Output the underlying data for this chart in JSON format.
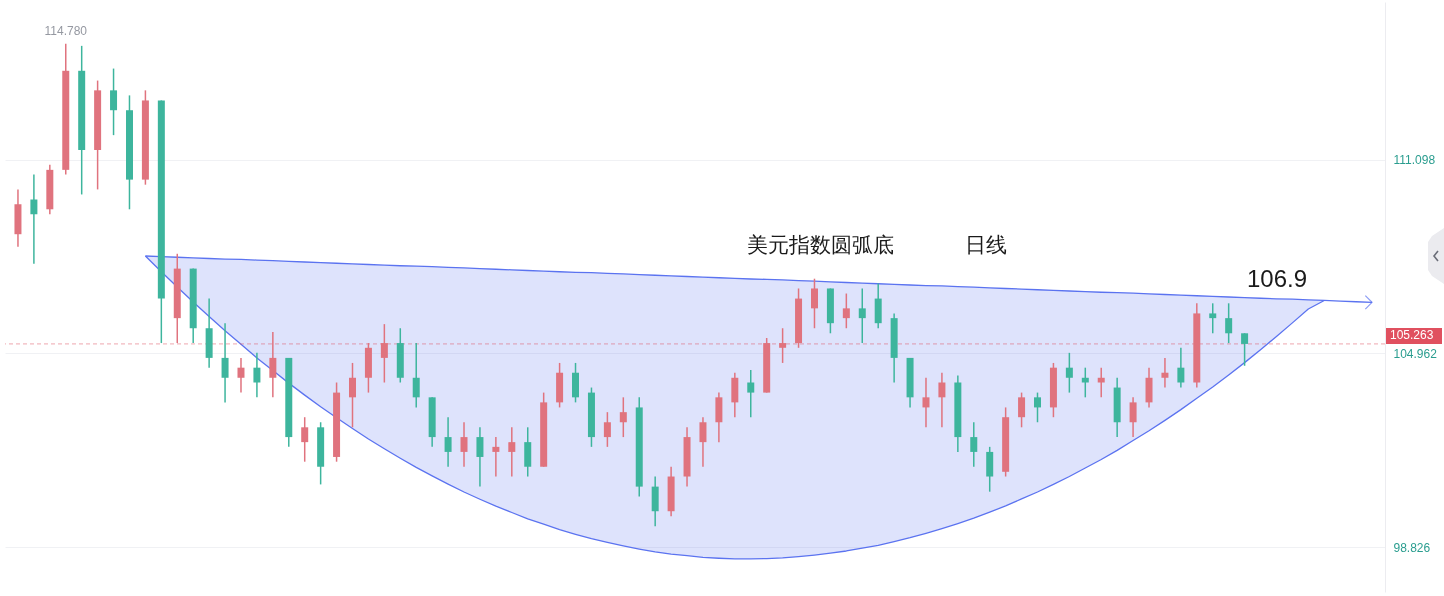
{
  "chart_data": {
    "type": "candlestick",
    "categories": [
      null,
      null,
      null,
      null,
      null,
      null,
      null,
      null,
      null,
      null,
      null,
      null,
      null,
      null,
      null,
      null,
      null,
      null,
      null,
      null,
      null,
      null,
      null,
      null,
      null,
      null,
      null,
      null,
      null,
      null,
      null,
      null,
      null,
      null,
      null,
      null,
      null,
      null,
      null,
      null,
      null,
      null,
      null,
      null,
      null,
      null,
      null,
      null,
      null,
      null,
      null,
      null,
      null,
      null,
      null,
      null,
      null,
      null,
      null,
      null,
      null,
      null,
      null,
      null,
      null,
      null,
      null,
      null,
      null,
      null,
      null,
      null,
      null,
      null,
      null,
      null,
      null,
      null,
      null,
      null,
      null,
      null,
      null,
      null,
      null,
      null
    ],
    "ohlc": [
      [
        108.74,
        110.16,
        108.34,
        109.69
      ],
      [
        109.84,
        110.63,
        107.8,
        109.37
      ],
      [
        109.53,
        110.94,
        109.37,
        110.78
      ],
      [
        110.78,
        114.78,
        110.63,
        113.92
      ],
      [
        113.92,
        114.71,
        110.0,
        111.41
      ],
      [
        111.41,
        113.61,
        110.16,
        113.3
      ],
      [
        113.3,
        113.99,
        111.88,
        112.67
      ],
      [
        112.67,
        113.14,
        109.53,
        110.47
      ],
      [
        110.47,
        113.3,
        110.31,
        112.98
      ],
      [
        112.98,
        112.98,
        105.29,
        106.7
      ],
      [
        106.08,
        108.12,
        105.29,
        107.65
      ],
      [
        107.65,
        107.65,
        105.29,
        105.76
      ],
      [
        105.76,
        106.7,
        104.51,
        104.82
      ],
      [
        104.82,
        105.92,
        103.41,
        104.19
      ],
      [
        104.19,
        104.82,
        103.72,
        104.51
      ],
      [
        104.51,
        104.98,
        103.57,
        104.04
      ],
      [
        104.19,
        105.64,
        103.57,
        104.82
      ],
      [
        104.82,
        104.82,
        102.0,
        102.31
      ],
      [
        102.15,
        102.94,
        101.53,
        102.62
      ],
      [
        102.62,
        102.78,
        100.81,
        101.37
      ],
      [
        101.68,
        104.04,
        101.53,
        103.72
      ],
      [
        103.57,
        104.66,
        102.62,
        104.19
      ],
      [
        104.19,
        105.29,
        103.72,
        105.14
      ],
      [
        104.82,
        105.89,
        104.04,
        105.29
      ],
      [
        105.29,
        105.76,
        104.04,
        104.19
      ],
      [
        104.19,
        105.29,
        103.25,
        103.57
      ],
      [
        103.57,
        103.57,
        102.0,
        102.31
      ],
      [
        102.31,
        102.94,
        101.37,
        101.84
      ],
      [
        101.84,
        102.78,
        101.37,
        102.31
      ],
      [
        102.31,
        102.62,
        100.74,
        101.68
      ],
      [
        101.84,
        102.31,
        101.06,
        102.0
      ],
      [
        101.84,
        102.62,
        101.06,
        102.15
      ],
      [
        102.15,
        102.62,
        101.06,
        101.37
      ],
      [
        101.37,
        103.72,
        101.37,
        103.41
      ],
      [
        103.41,
        104.66,
        103.25,
        104.35
      ],
      [
        104.35,
        104.66,
        103.41,
        103.57
      ],
      [
        103.72,
        103.88,
        102.0,
        102.31
      ],
      [
        102.31,
        103.1,
        102.0,
        102.78
      ],
      [
        102.78,
        103.57,
        102.31,
        103.1
      ],
      [
        103.25,
        103.57,
        100.43,
        100.74
      ],
      [
        100.74,
        101.06,
        99.48,
        99.96
      ],
      [
        99.96,
        101.37,
        99.8,
        101.06
      ],
      [
        101.06,
        102.62,
        100.74,
        102.31
      ],
      [
        102.15,
        102.94,
        101.37,
        102.78
      ],
      [
        102.78,
        103.72,
        102.15,
        103.57
      ],
      [
        103.41,
        104.35,
        102.94,
        104.19
      ],
      [
        104.04,
        104.44,
        102.94,
        103.72
      ],
      [
        103.72,
        105.45,
        103.72,
        105.29
      ],
      [
        105.14,
        105.76,
        104.66,
        105.29
      ],
      [
        105.29,
        107.02,
        105.14,
        106.7
      ],
      [
        106.39,
        107.33,
        105.76,
        107.02
      ],
      [
        107.02,
        107.02,
        105.6,
        105.92
      ],
      [
        106.08,
        106.86,
        105.76,
        106.39
      ],
      [
        106.39,
        107.02,
        105.29,
        106.08
      ],
      [
        106.7,
        107.18,
        105.76,
        105.92
      ],
      [
        106.08,
        106.23,
        104.04,
        104.82
      ],
      [
        104.82,
        104.82,
        103.25,
        103.57
      ],
      [
        103.25,
        104.19,
        102.62,
        103.57
      ],
      [
        103.57,
        104.35,
        102.62,
        104.04
      ],
      [
        104.04,
        104.26,
        101.84,
        102.31
      ],
      [
        102.31,
        102.78,
        101.37,
        101.84
      ],
      [
        101.84,
        102.0,
        100.58,
        101.06
      ],
      [
        101.21,
        103.25,
        101.06,
        102.94
      ],
      [
        102.94,
        103.72,
        102.62,
        103.57
      ],
      [
        103.57,
        103.72,
        102.78,
        103.25
      ],
      [
        103.25,
        104.66,
        102.94,
        104.51
      ],
      [
        104.51,
        104.98,
        103.72,
        104.19
      ],
      [
        104.19,
        104.51,
        103.57,
        104.04
      ],
      [
        104.04,
        104.51,
        103.57,
        104.19
      ],
      [
        103.88,
        104.19,
        102.31,
        102.78
      ],
      [
        102.78,
        103.57,
        102.31,
        103.41
      ],
      [
        103.41,
        104.51,
        103.25,
        104.19
      ],
      [
        104.19,
        104.82,
        103.88,
        104.35
      ],
      [
        104.51,
        105.14,
        103.88,
        104.04
      ],
      [
        104.04,
        106.55,
        103.88,
        106.23
      ],
      [
        106.23,
        106.55,
        105.6,
        106.08
      ],
      [
        106.08,
        106.55,
        105.29,
        105.6
      ],
      [
        105.6,
        105.6,
        104.57,
        105.263
      ],
      null,
      null,
      null,
      null,
      null,
      null,
      null,
      null
    ],
    "colors": [
      "#e0737e",
      "#3db59d",
      "#e0737e",
      "#e0737e",
      "#3db59d",
      "#e0737e",
      "#3db59d",
      "#3db59d",
      "#e0737e",
      "#3db59d",
      "#e0737e",
      "#3db59d",
      "#3db59d",
      "#3db59d",
      "#e0737e",
      "#3db59d",
      "#e0737e",
      "#3db59d",
      "#e0737e",
      "#3db59d",
      "#e0737e",
      "#e0737e",
      "#e0737e",
      "#e0737e",
      "#3db59d",
      "#3db59d",
      "#3db59d",
      "#3db59d",
      "#e0737e",
      "#3db59d",
      "#e0737e",
      "#e0737e",
      "#3db59d",
      "#e0737e",
      "#e0737e",
      "#3db59d",
      "#3db59d",
      "#e0737e",
      "#e0737e",
      "#3db59d",
      "#3db59d",
      "#e0737e",
      "#e0737e",
      "#e0737e",
      "#e0737e",
      "#e0737e",
      "#3db59d",
      "#e0737e",
      "#e0737e",
      "#e0737e",
      "#e0737e",
      "#3db59d",
      "#e0737e",
      "#3db59d",
      "#3db59d",
      "#3db59d",
      "#3db59d",
      "#e0737e",
      "#e0737e",
      "#3db59d",
      "#3db59d",
      "#3db59d",
      "#e0737e",
      "#e0737e",
      "#3db59d",
      "#e0737e",
      "#3db59d",
      "#3db59d",
      "#e0737e",
      "#3db59d",
      "#e0737e",
      "#e0737e",
      "#e0737e",
      "#3db59d",
      "#e0737e",
      "#3db59d",
      "#3db59d",
      "#3db59d",
      null,
      null,
      null,
      null,
      null,
      null,
      null,
      null
    ],
    "series": [
      {
        "type": "line",
        "color": "#5b73f0",
        "values": [
          null,
          null,
          null,
          null,
          null,
          null,
          null,
          null,
          108.05,
          108.03,
          108.01,
          107.99,
          107.97,
          107.95,
          107.94,
          107.92,
          107.9,
          107.88,
          107.86,
          107.84,
          107.82,
          107.8,
          107.78,
          107.76,
          107.74,
          107.73,
          107.71,
          107.69,
          107.67,
          107.65,
          107.63,
          107.61,
          107.59,
          107.57,
          107.55,
          107.53,
          107.52,
          107.5,
          107.48,
          107.46,
          107.44,
          107.42,
          107.4,
          107.38,
          107.36,
          107.34,
          107.32,
          107.31,
          107.29,
          107.27,
          107.25,
          107.23,
          107.21,
          107.19,
          107.17,
          107.15,
          107.13,
          107.11,
          107.1,
          107.08,
          107.06,
          107.04,
          107.02,
          107.0,
          106.98,
          106.96,
          106.94,
          106.92,
          106.9,
          106.89,
          106.87,
          106.85,
          106.83,
          106.81,
          106.79,
          106.77,
          106.75,
          106.73,
          106.71,
          106.69,
          106.68,
          106.66,
          106.64,
          106.62,
          106.6,
          106.58
        ]
      },
      {
        "type": "line",
        "color": "#5b73f0",
        "values": [
          null,
          null,
          null,
          null,
          null,
          null,
          null,
          null,
          108.05,
          107.55,
          107.07,
          106.59,
          106.13,
          105.68,
          105.25,
          104.82,
          104.42,
          104.02,
          103.64,
          103.27,
          102.92,
          102.58,
          102.25,
          101.94,
          101.64,
          101.35,
          101.08,
          100.82,
          100.57,
          100.34,
          100.12,
          99.92,
          99.72,
          99.55,
          99.38,
          99.23,
          99.09,
          98.97,
          98.86,
          98.76,
          98.67,
          98.6,
          98.55,
          98.5,
          98.47,
          98.45,
          98.45,
          98.46,
          98.48,
          98.52,
          98.57,
          98.63,
          98.7,
          98.79,
          98.88,
          99.0,
          99.12,
          99.26,
          99.41,
          99.57,
          99.74,
          99.93,
          100.13,
          100.35,
          100.57,
          100.81,
          101.06,
          101.33,
          101.6,
          101.89,
          102.2,
          102.51,
          102.84,
          103.18,
          103.54,
          103.9,
          104.28,
          104.67,
          105.08,
          105.5,
          105.93,
          106.37,
          106.64,
          null,
          null,
          null
        ],
        "lower": [
          null,
          null,
          null,
          null,
          null,
          null,
          null,
          null,
          108.05,
          107.55,
          107.07,
          106.59,
          106.13,
          105.68,
          105.25,
          104.82,
          104.42,
          104.02,
          103.64,
          103.27,
          102.92,
          102.58,
          102.25,
          101.94,
          101.64,
          101.35,
          101.08,
          100.82,
          100.57,
          100.34,
          100.12,
          99.92,
          99.72,
          99.55,
          99.38,
          99.23,
          99.09,
          98.97,
          98.86,
          98.76,
          98.67,
          98.6,
          98.55,
          98.5,
          98.47,
          98.45,
          98.45,
          98.46,
          98.48,
          98.52,
          98.57,
          98.63,
          98.7,
          98.79,
          98.88,
          99.0,
          99.12,
          99.26,
          99.41,
          99.57,
          99.74,
          99.93,
          100.13,
          100.35,
          100.57,
          100.81,
          101.06,
          101.33,
          101.6,
          101.89,
          102.2,
          102.51,
          102.84,
          103.18,
          103.54,
          103.9,
          104.28,
          104.67,
          105.08,
          105.5,
          105.93,
          106.37,
          106.64,
          null,
          null,
          null
        ],
        "upper": [
          null,
          null,
          null,
          null,
          null,
          null,
          null,
          null,
          108.05,
          108.03,
          108.01,
          107.99,
          107.97,
          107.95,
          107.94,
          107.92,
          107.9,
          107.88,
          107.86,
          107.84,
          107.82,
          107.8,
          107.78,
          107.76,
          107.74,
          107.73,
          107.71,
          107.69,
          107.67,
          107.65,
          107.63,
          107.61,
          107.59,
          107.57,
          107.55,
          107.53,
          107.52,
          107.5,
          107.48,
          107.46,
          107.44,
          107.42,
          107.4,
          107.38,
          107.36,
          107.34,
          107.32,
          107.31,
          107.29,
          107.27,
          107.25,
          107.23,
          107.21,
          107.19,
          107.17,
          107.15,
          107.13,
          107.11,
          107.1,
          107.08,
          107.06,
          107.04,
          107.02,
          107.0,
          106.98,
          106.96,
          106.94,
          106.92,
          106.9,
          106.89,
          106.87,
          106.85,
          106.83,
          106.81,
          106.79,
          106.77,
          106.75,
          106.73,
          106.71,
          106.69,
          106.68,
          106.66,
          106.64,
          null,
          null,
          null
        ]
      }
    ],
    "ylim": [
      97.4,
      116.1
    ],
    "yticks": [
      98.826,
      104.962,
      111.098
    ],
    "grid": "y",
    "ref_lines": [
      {
        "axis": "y",
        "value": 105.263,
        "label": "105.263",
        "color": "#e0505f",
        "line_style": "dashed"
      }
    ],
    "annotations": [
      "美元指数圆弧底",
      "日线",
      "106.9",
      {
        "text": "114.780",
        "y": 114.78
      }
    ]
  }
}
